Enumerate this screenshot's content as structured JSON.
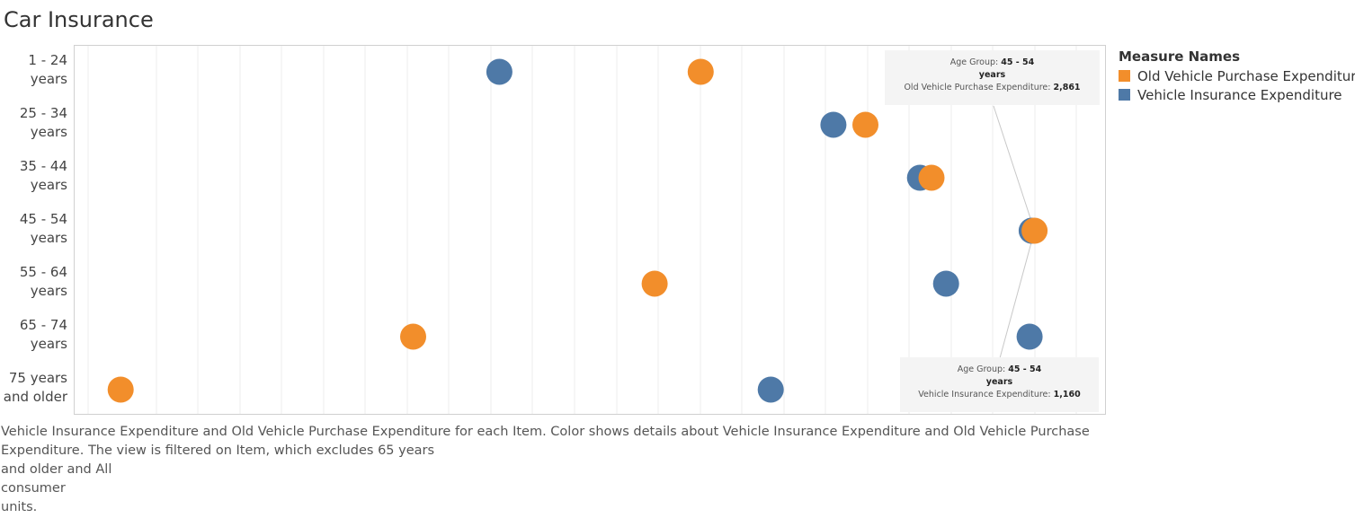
{
  "title": "Car Insurance",
  "legend": {
    "title": "Measure Names",
    "items": [
      {
        "label": "Old Vehicle Purchase Expenditure",
        "color": "#F28E2B"
      },
      {
        "label": "Vehicle Insurance Expenditure",
        "color": "#4E79A7"
      }
    ]
  },
  "tooltips": [
    {
      "age_group_label": "Age Group:",
      "age_group_value": "45 - 54",
      "age_group_value_line2": "years",
      "measure_label": "Old Vehicle Purchase Expenditure:",
      "measure_value": "2,861"
    },
    {
      "age_group_label": "Age Group:",
      "age_group_value": "45 - 54",
      "age_group_value_line2": "years",
      "measure_label": "Vehicle Insurance Expenditure:",
      "measure_value": "1,160"
    }
  ],
  "caption": {
    "lines": [
      "Vehicle Insurance Expenditure and Old Vehicle Purchase Expenditure for each Item.  Color shows details about Vehicle Insurance Expenditure and Old Vehicle Purchase",
      "Expenditure. The view is filtered on Item, which excludes 65 years",
      " and older and All",
      "consumer",
      " units."
    ]
  },
  "chart_data": {
    "type": "scatter",
    "categories": [
      [
        "1 - 24",
        "years"
      ],
      [
        "25 - 34",
        "years"
      ],
      [
        "35 - 44",
        "years"
      ],
      [
        "45 - 54",
        "years"
      ],
      [
        "55 - 64",
        "years"
      ],
      [
        "65 - 74",
        "years"
      ],
      [
        "75 years",
        "and older"
      ]
    ],
    "series": [
      {
        "name": "Vehicle Insurance Expenditure",
        "color": "#4E79A7",
        "axis": "insurance",
        "values": [
          650,
          970,
          1053,
          1160,
          1078,
          1158,
          910
        ]
      },
      {
        "name": "Old Vehicle Purchase Expenditure",
        "color": "#F28E2B",
        "axis": "purchase",
        "values": [
          1730,
          2288,
          2512,
          2861,
          1574,
          756,
          -235
        ]
      }
    ],
    "axes": {
      "insurance": {
        "min": 243,
        "max": 1232
      },
      "purchase": {
        "min": -391,
        "max": 3106
      }
    },
    "grid": true,
    "legend_position": "right"
  }
}
